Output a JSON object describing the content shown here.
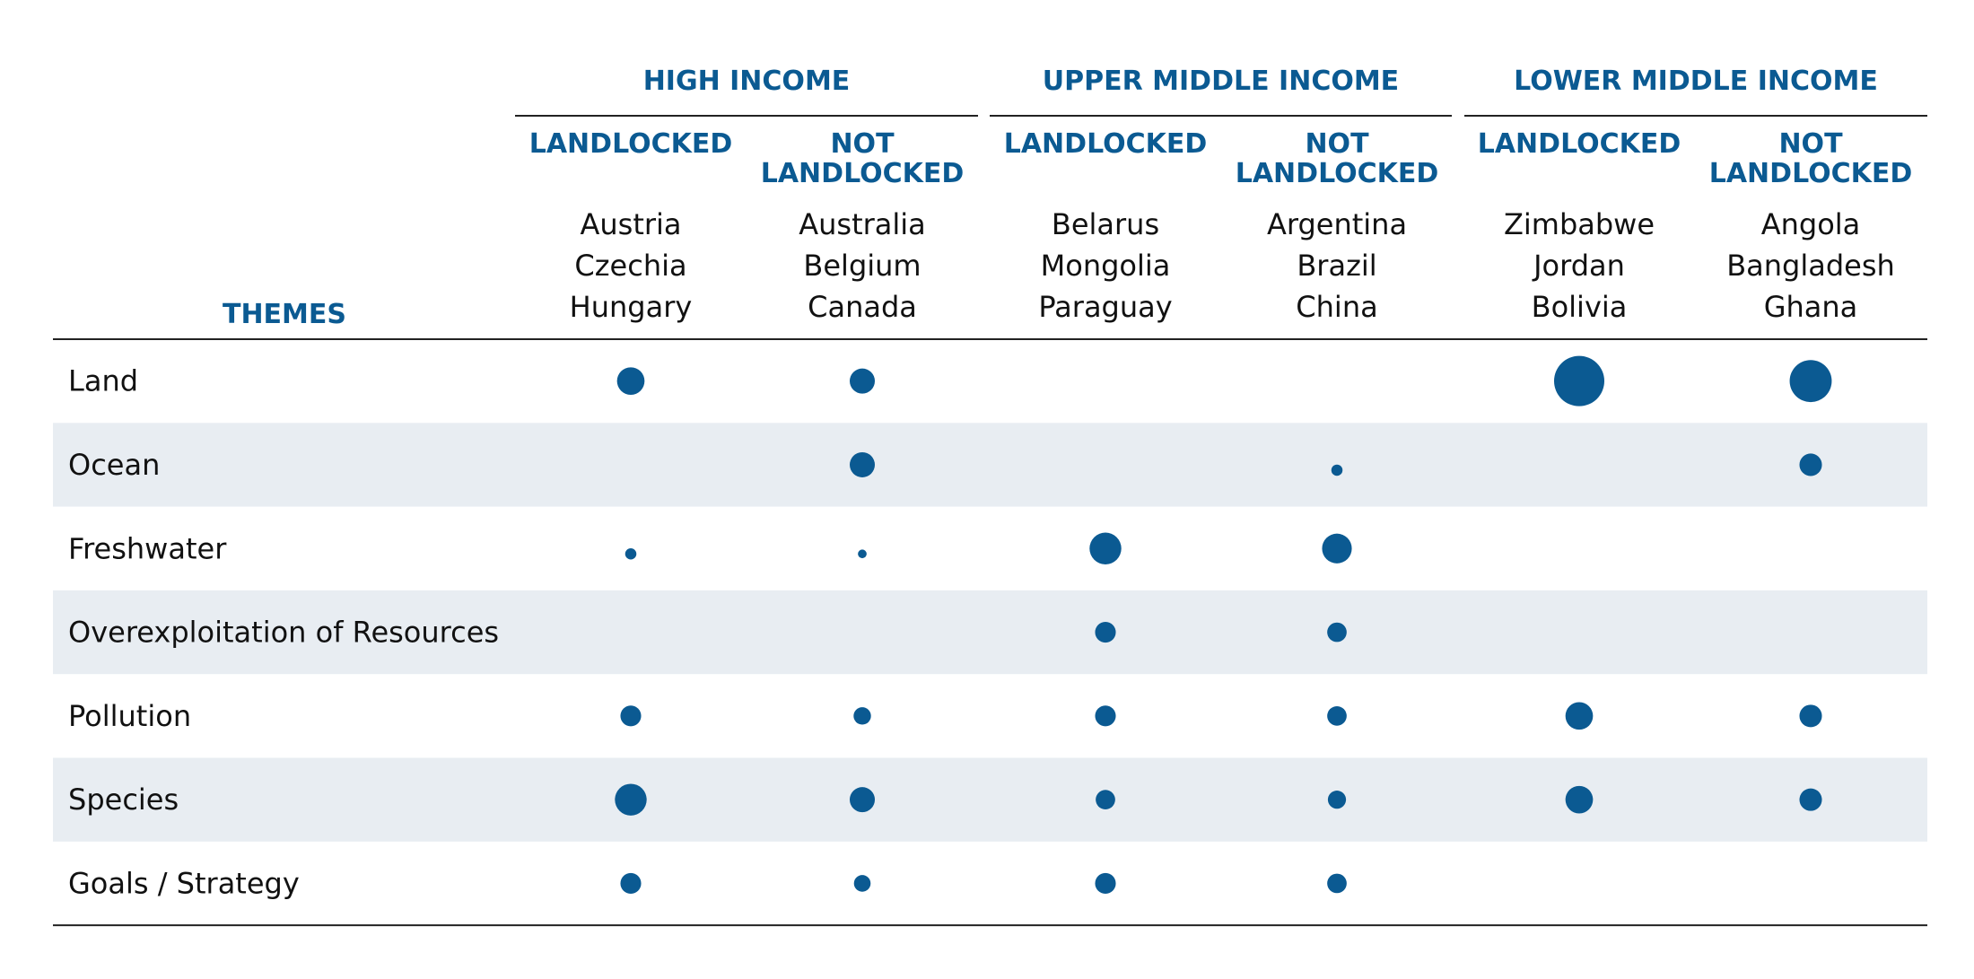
{
  "chart_data": {
    "type": "table",
    "row_header": "THEMES",
    "groups": [
      {
        "name": "HIGH INCOME",
        "columns": [
          {
            "label": [
              "LANDLOCKED"
            ],
            "countries": [
              "Austria",
              "Czechia",
              "Hungary"
            ]
          },
          {
            "label": [
              "NOT",
              "LANDLOCKED"
            ],
            "countries": [
              "Australia",
              "Belgium",
              "Canada"
            ]
          }
        ]
      },
      {
        "name": "UPPER MIDDLE INCOME",
        "columns": [
          {
            "label": [
              "LANDLOCKED"
            ],
            "countries": [
              "Belarus",
              "Mongolia",
              "Paraguay"
            ]
          },
          {
            "label": [
              "NOT",
              "LANDLOCKED"
            ],
            "countries": [
              "Argentina",
              "Brazil",
              "China"
            ]
          }
        ]
      },
      {
        "name": "LOWER MIDDLE INCOME",
        "columns": [
          {
            "label": [
              "LANDLOCKED"
            ],
            "countries": [
              "Zimbabwe",
              "Jordan",
              "Bolivia"
            ]
          },
          {
            "label": [
              "NOT",
              "LANDLOCKED"
            ],
            "countries": [
              "Angola",
              "Bangladesh",
              "Ghana"
            ]
          }
        ]
      }
    ],
    "rows": [
      "Land",
      "Ocean",
      "Freshwater",
      "Overexploitation of Resources",
      "Pollution",
      "Species",
      "Goals / Strategy"
    ],
    "values": [
      [
        3,
        2.5,
        0,
        0,
        10,
        7
      ],
      [
        0,
        2.5,
        0,
        0.5,
        0,
        2
      ],
      [
        0.5,
        0.3,
        4,
        3.5,
        0,
        0
      ],
      [
        0,
        0,
        1.7,
        1.5,
        0,
        0
      ],
      [
        1.7,
        1.2,
        1.7,
        1.5,
        3,
        2
      ],
      [
        4,
        2.5,
        1.5,
        1.3,
        3,
        2
      ],
      [
        1.7,
        1.1,
        1.7,
        1.5,
        0,
        0
      ]
    ],
    "marker_color": "#0b5a92",
    "row_band_color": "#e8edf2"
  }
}
